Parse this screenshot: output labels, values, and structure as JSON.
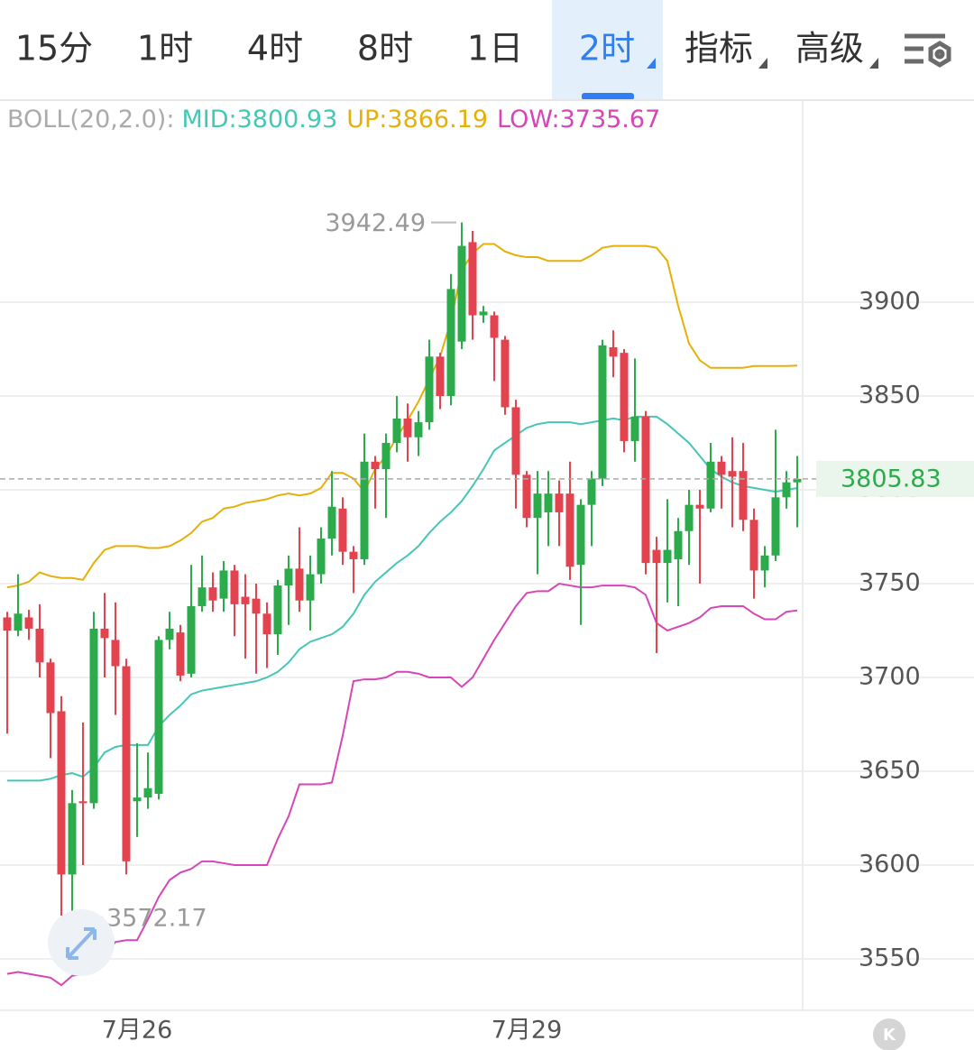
{
  "tabs": [
    {
      "label": "15分"
    },
    {
      "label": "1时"
    },
    {
      "label": "4时"
    },
    {
      "label": "8时"
    },
    {
      "label": "1日"
    },
    {
      "label": "2时",
      "active": true,
      "dropdown": true
    },
    {
      "label": "指标",
      "dropdown": true
    },
    {
      "label": "高级",
      "dropdown": true
    }
  ],
  "corner_badge": "K",
  "chart_data": {
    "type": "candlestick",
    "indicator_label": "BOLL(20,2.0):",
    "categories": [
      null,
      null,
      null,
      null,
      null,
      null,
      null,
      null,
      null,
      null,
      null,
      null,
      "7月26",
      null,
      null,
      null,
      null,
      null,
      null,
      null,
      null,
      null,
      null,
      null,
      null,
      null,
      null,
      null,
      null,
      null,
      null,
      null,
      null,
      null,
      null,
      null,
      null,
      null,
      null,
      null,
      null,
      null,
      null,
      null,
      null,
      null,
      null,
      null,
      "7月29",
      null,
      null,
      null,
      null,
      null,
      null,
      null,
      null,
      null,
      null,
      null,
      null,
      null,
      null,
      null,
      null,
      null,
      null,
      null,
      null,
      null,
      null,
      null,
      null,
      null
    ],
    "open": [
      3732,
      3725,
      3732,
      3726,
      3708,
      3682,
      3595,
      3634,
      3633,
      3726,
      3720,
      3706,
      3634,
      3636,
      3638,
      3720,
      3724,
      3702,
      3738,
      3748,
      3742,
      3757,
      3743,
      3742,
      3734,
      3723,
      3749,
      3758,
      3741,
      3755,
      3774,
      3790,
      3767,
      3763,
      3815,
      3811,
      3825,
      3838,
      3828,
      3836,
      3871,
      3850,
      3879,
      3932,
      3893,
      3893,
      3880,
      3844,
      3808,
      3785,
      3788,
      3798,
      3798,
      3760,
      3792,
      3806,
      3876,
      3873,
      3826,
      3839,
      3768,
      3761,
      3763,
      3778,
      3792,
      3790,
      3815,
      3810,
      3810,
      3784,
      3757,
      3765,
      3796,
      3804
    ],
    "high": [
      3735,
      3755,
      3736,
      3739,
      3710,
      3690,
      3640,
      3676,
      3735,
      3745,
      3740,
      3710,
      3665,
      3660,
      3722,
      3735,
      3728,
      3760,
      3765,
      3756,
      3762,
      3760,
      3755,
      3750,
      3740,
      3752,
      3765,
      3780,
      3765,
      3780,
      3810,
      3796,
      3770,
      3830,
      3818,
      3830,
      3850,
      3846,
      3842,
      3880,
      3873,
      3915,
      3942.49,
      3938,
      3898,
      3895,
      3882,
      3848,
      3810,
      3810,
      3810,
      3805,
      3815,
      3795,
      3810,
      3880,
      3885,
      3875,
      3870,
      3842,
      3775,
      3795,
      3785,
      3800,
      3800,
      3825,
      3818,
      3828,
      3825,
      3790,
      3770,
      3832,
      3810,
      3818
    ],
    "low": [
      3670,
      3722,
      3720,
      3700,
      3657,
      3573,
      3572.17,
      3600,
      3630,
      3700,
      3680,
      3595,
      3615,
      3630,
      3635,
      3715,
      3698,
      3700,
      3735,
      3735,
      3735,
      3722,
      3710,
      3702,
      3705,
      3712,
      3728,
      3735,
      3725,
      3750,
      3765,
      3760,
      3745,
      3760,
      3790,
      3785,
      3820,
      3815,
      3818,
      3832,
      3843,
      3845,
      3875,
      3880,
      3889,
      3858,
      3840,
      3790,
      3780,
      3755,
      3770,
      3770,
      3752,
      3728,
      3770,
      3802,
      3860,
      3820,
      3815,
      3755,
      3713,
      3740,
      3738,
      3760,
      3750,
      3788,
      3790,
      3780,
      3778,
      3742,
      3748,
      3762,
      3790,
      3780
    ],
    "close": [
      3725,
      3734,
      3726,
      3708,
      3681,
      3595,
      3633,
      3633,
      3726,
      3721,
      3706,
      3602,
      3636,
      3641,
      3720,
      3726,
      3701,
      3738,
      3748,
      3741,
      3757,
      3739,
      3739,
      3734,
      3723,
      3749,
      3758,
      3741,
      3755,
      3774,
      3791,
      3767,
      3763,
      3815,
      3811,
      3825,
      3838,
      3828,
      3836,
      3871,
      3850,
      3907,
      3930,
      3893,
      3895,
      3881,
      3844,
      3808,
      3785,
      3798,
      3798,
      3788,
      3759,
      3792,
      3806,
      3877,
      3871,
      3826,
      3839,
      3761,
      3761,
      3768,
      3778,
      3792,
      3790,
      3815,
      3808,
      3807,
      3784,
      3757,
      3765,
      3796,
      3804,
      3805.83
    ],
    "up_color": "#2bab4c",
    "down_color": "#e2434f",
    "series": [
      {
        "name": "MID:",
        "color": "#45c7b5",
        "values": [
          3645,
          3645,
          3645,
          3645,
          3646,
          3648,
          3649,
          3647,
          3652,
          3660,
          3663,
          3664,
          3664,
          3664,
          3674,
          3680,
          3685,
          3691,
          3693,
          3694,
          3695,
          3696,
          3697,
          3698,
          3700,
          3703,
          3708,
          3715,
          3719,
          3721,
          3723,
          3727,
          3734,
          3744,
          3751,
          3756,
          3761,
          3765,
          3770,
          3777,
          3783,
          3788,
          3794,
          3802,
          3811,
          3821,
          3825,
          3829,
          3833,
          3835,
          3836,
          3836,
          3836,
          3835,
          3836,
          3837,
          3838,
          3837,
          3839,
          3839,
          3839,
          3835,
          3830,
          3825,
          3818,
          3811,
          3807,
          3804,
          3802,
          3801,
          3800,
          3799,
          3800,
          3800.93
        ]
      },
      {
        "name": "UP:",
        "color": "#e6b00a",
        "values": [
          3748,
          3749,
          3751,
          3756,
          3754,
          3753,
          3753,
          3752,
          3761,
          3768,
          3770,
          3770,
          3770,
          3769,
          3769,
          3770,
          3773,
          3777,
          3783,
          3785,
          3790,
          3791,
          3793,
          3794,
          3795,
          3797,
          3798,
          3797,
          3798,
          3801,
          3809,
          3809,
          3806,
          3799,
          3811,
          3818,
          3828,
          3837,
          3847,
          3859,
          3871,
          3890,
          3917,
          3926,
          3931,
          3931,
          3927,
          3925,
          3924,
          3924,
          3922,
          3922,
          3922,
          3922,
          3925,
          3929,
          3930,
          3930,
          3930,
          3930,
          3929,
          3922,
          3898,
          3878,
          3869,
          3865,
          3865,
          3865,
          3865,
          3866,
          3866,
          3866,
          3866,
          3866.19
        ]
      },
      {
        "name": "LOW:",
        "color": "#d646b6",
        "values": [
          3542,
          3543,
          3542,
          3541,
          3540,
          3536,
          3541,
          3542,
          3547,
          3552,
          3559,
          3560,
          3560,
          3571,
          3583,
          3592,
          3596,
          3598,
          3602,
          3602,
          3601,
          3600,
          3600,
          3600,
          3600,
          3614,
          3626,
          3643,
          3643,
          3643,
          3644,
          3669,
          3698,
          3699,
          3699,
          3700,
          3703,
          3703,
          3702,
          3700,
          3700,
          3700,
          3695,
          3700,
          3710,
          3720,
          3729,
          3738,
          3745,
          3746,
          3746,
          3750,
          3749,
          3748,
          3748,
          3749,
          3749,
          3749,
          3748,
          3744,
          3729,
          3725,
          3727,
          3729,
          3732,
          3737,
          3738,
          3738,
          3738,
          3734,
          3731,
          3731,
          3735,
          3735.67
        ]
      }
    ],
    "ylim": [
      3522.6,
      4007.2
    ],
    "yticks": [
      3550,
      3600,
      3650,
      3700,
      3750,
      3800,
      3850,
      3900
    ],
    "grid": true
  }
}
